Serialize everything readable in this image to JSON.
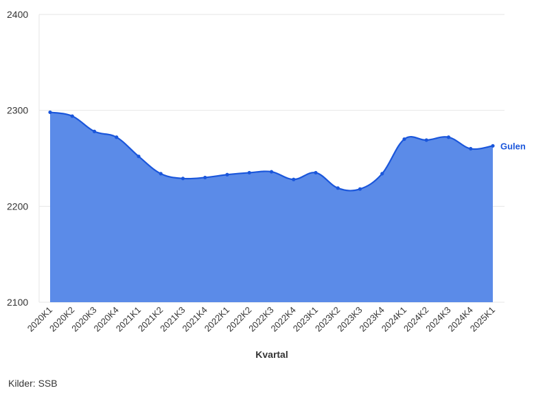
{
  "chart_data": {
    "type": "area",
    "xlabel": "Kvartal",
    "ylabel": "",
    "ylim": [
      2100,
      2400
    ],
    "yticks": [
      2100,
      2200,
      2300,
      2400
    ],
    "grid": true,
    "categories": [
      "2020K1",
      "2020K2",
      "2020K3",
      "2020K4",
      "2021K1",
      "2021K2",
      "2021K3",
      "2021K4",
      "2022K1",
      "2022K2",
      "2022K3",
      "2022K4",
      "2023K1",
      "2023K2",
      "2023K3",
      "2023K4",
      "2024K1",
      "2024K2",
      "2024K3",
      "2024K4",
      "2025K1"
    ],
    "series": [
      {
        "name": "Gulen",
        "color": "#1a56db",
        "fill": "#5b8be8",
        "values": [
          2298,
          2294,
          2278,
          2272,
          2252,
          2234,
          2229,
          2230,
          2233,
          2235,
          2236,
          2228,
          2235,
          2219,
          2218,
          2234,
          2270,
          2269,
          2272,
          2260,
          2263
        ]
      }
    ]
  },
  "source": "Kilder: SSB"
}
